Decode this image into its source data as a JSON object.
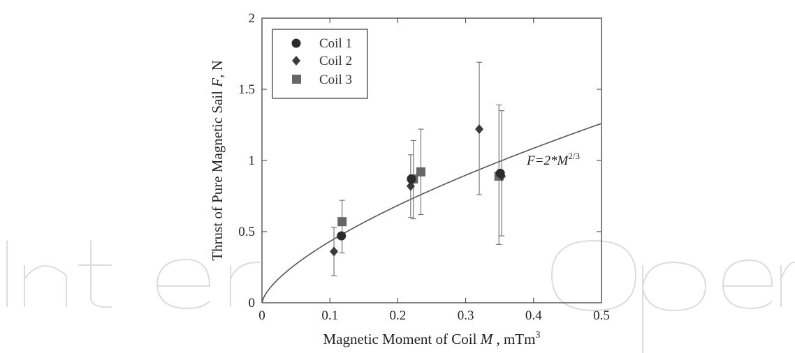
{
  "chart_data": {
    "type": "scatter",
    "title": "",
    "xlabel": {
      "prefix": "Magnetic Moment of Coil ",
      "var": "M",
      "suffix": " , mTm",
      "sup": "3"
    },
    "ylabel": {
      "prefix": "Thrust of Pure Magnetic Sail ",
      "var": "F",
      "suffix": ", N"
    },
    "xlim": [
      0,
      0.5
    ],
    "ylim": [
      0,
      2
    ],
    "xticks": [
      0,
      0.1,
      0.2,
      0.3,
      0.4,
      0.5
    ],
    "xtick_labels": [
      "0",
      "0.1",
      "0.2",
      "0.3",
      "0.4",
      "0.5"
    ],
    "yticks": [
      0,
      0.5,
      1,
      1.5,
      2
    ],
    "ytick_labels": [
      "0",
      "0.5",
      "1",
      "1.5",
      "2"
    ],
    "grid": false,
    "legend_position": "top-left",
    "series": [
      {
        "name": "Coil 1",
        "marker": "circle",
        "color": "#2b2b2b",
        "points": [
          {
            "x": 0.117,
            "y": 0.47,
            "err_low": null,
            "err_high": null
          },
          {
            "x": 0.22,
            "y": 0.87,
            "err_low": null,
            "err_high": null
          },
          {
            "x": 0.351,
            "y": 0.91,
            "err_low": null,
            "err_high": null
          }
        ]
      },
      {
        "name": "Coil 2",
        "marker": "diamond",
        "color": "#3a3a3a",
        "points": [
          {
            "x": 0.106,
            "y": 0.36,
            "err_low": 0.19,
            "err_high": 0.53
          },
          {
            "x": 0.219,
            "y": 0.82,
            "err_low": 0.6,
            "err_high": 1.04
          },
          {
            "x": 0.32,
            "y": 1.22,
            "err_low": 0.76,
            "err_high": 1.69
          },
          {
            "x": 0.353,
            "y": 0.89,
            "err_low": 0.47,
            "err_high": 1.35
          }
        ]
      },
      {
        "name": "Coil 3",
        "marker": "square",
        "color": "#666666",
        "points": [
          {
            "x": 0.118,
            "y": 0.57,
            "err_low": 0.35,
            "err_high": 0.72
          },
          {
            "x": 0.223,
            "y": 0.87,
            "err_low": 0.59,
            "err_high": 1.14
          },
          {
            "x": 0.234,
            "y": 0.92,
            "err_low": 0.62,
            "err_high": 1.22
          },
          {
            "x": 0.349,
            "y": 0.89,
            "err_low": 0.41,
            "err_high": 1.39
          }
        ]
      }
    ],
    "fit_curve": {
      "coef": 2,
      "exponent": 0.6667,
      "color": "#555555"
    },
    "annotation": {
      "prefix": "F=2*M",
      "sup": "2/3",
      "anchor_x": 0.39,
      "anchor_y": 0.97
    },
    "watermark_color": "#d9d9d9"
  }
}
